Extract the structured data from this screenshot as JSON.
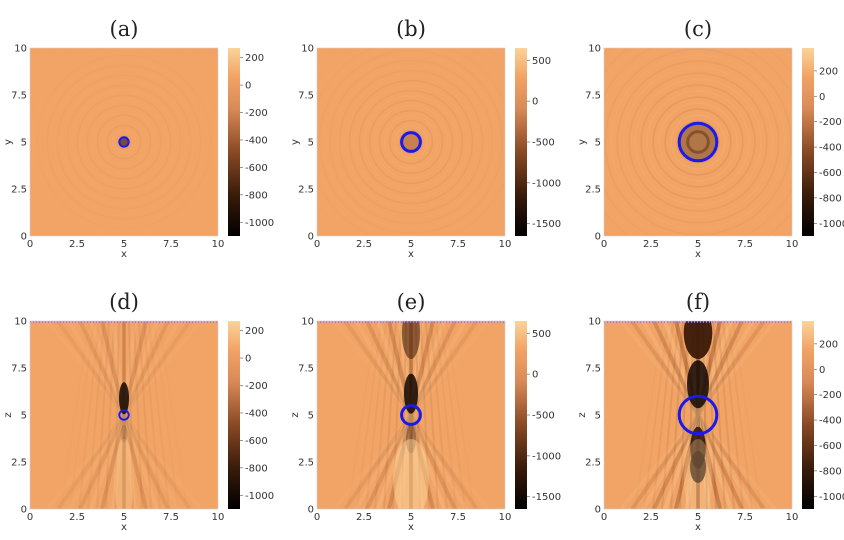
{
  "chart_data": [
    {
      "id": "a",
      "type": "heatmap",
      "title": "(a)",
      "xlabel": "x",
      "ylabel": "y",
      "xlim": [
        0,
        10
      ],
      "ylim": [
        0,
        10
      ],
      "xticks": [
        "0",
        "2.5",
        "5",
        "7.5",
        "10"
      ],
      "yticks": [
        "0",
        "2.5",
        "5",
        "7.5",
        "10"
      ],
      "colorbar": {
        "range": [
          -1100,
          270
        ],
        "ticks": [
          "200",
          "0",
          "-200",
          "-400",
          "-600",
          "-800",
          "-1000"
        ]
      },
      "field": "x-y cross-section: uniform background with faint concentric rings centered at (5,5)",
      "circle": {
        "center": [
          5,
          5
        ],
        "radius": 0.25,
        "color": "#1a1aee"
      }
    },
    {
      "id": "b",
      "type": "heatmap",
      "title": "(b)",
      "xlabel": "x",
      "ylabel": "y",
      "xlim": [
        0,
        10
      ],
      "ylim": [
        0,
        10
      ],
      "xticks": [
        "0",
        "2.5",
        "5",
        "7.5",
        "10"
      ],
      "yticks": [
        "0",
        "2.5",
        "5",
        "7.5",
        "10"
      ],
      "colorbar": {
        "range": [
          -1650,
          650
        ],
        "ticks": [
          "500",
          "0",
          "-500",
          "-1000",
          "-1500"
        ]
      },
      "field": "x-y cross-section: concentric rings centered at (5,5)",
      "circle": {
        "center": [
          5,
          5
        ],
        "radius": 0.5,
        "color": "#1a1aee"
      }
    },
    {
      "id": "c",
      "type": "heatmap",
      "title": "(c)",
      "xlabel": "x",
      "ylabel": "y",
      "xlim": [
        0,
        10
      ],
      "ylim": [
        0,
        10
      ],
      "xticks": [
        "0",
        "2.5",
        "5",
        "7.5",
        "10"
      ],
      "yticks": [
        "0",
        "2.5",
        "5",
        "7.5",
        "10"
      ],
      "colorbar": {
        "range": [
          -1100,
          380
        ],
        "ticks": [
          "200",
          "0",
          "-200",
          "-400",
          "-600",
          "-800",
          "-1000"
        ]
      },
      "field": "x-y cross-section: darker concentric rings centered at (5,5)",
      "circle": {
        "center": [
          5,
          5
        ],
        "radius": 1.0,
        "color": "#1a1aee"
      }
    },
    {
      "id": "d",
      "type": "heatmap",
      "title": "(d)",
      "xlabel": "x",
      "ylabel": "z",
      "xlim": [
        0,
        10
      ],
      "ylim": [
        0,
        10
      ],
      "xticks": [
        "0",
        "2.5",
        "5",
        "7.5",
        "10"
      ],
      "yticks": [
        "0",
        "2.5",
        "5",
        "7.5",
        "10"
      ],
      "colorbar": {
        "range": [
          -1100,
          270
        ],
        "ticks": [
          "200",
          "0",
          "-200",
          "-400",
          "-600",
          "-800",
          "-1000"
        ]
      },
      "field": "x-z cross-section: hourglass-shaped beam pattern focused at (5,5)",
      "circle": {
        "center": [
          5,
          5
        ],
        "radius": 0.25,
        "color": "#1a1aee"
      }
    },
    {
      "id": "e",
      "type": "heatmap",
      "title": "(e)",
      "xlabel": "x",
      "ylabel": "z",
      "xlim": [
        0,
        10
      ],
      "ylim": [
        0,
        10
      ],
      "xticks": [
        "0",
        "2.5",
        "5",
        "7.5",
        "10"
      ],
      "yticks": [
        "0",
        "2.5",
        "5",
        "7.5",
        "10"
      ],
      "colorbar": {
        "range": [
          -1650,
          650
        ],
        "ticks": [
          "500",
          "0",
          "-500",
          "-1000",
          "-1500"
        ]
      },
      "field": "x-z cross-section: hourglass-shaped beam pattern focused at (5,5)",
      "circle": {
        "center": [
          5,
          5
        ],
        "radius": 0.5,
        "color": "#1a1aee"
      }
    },
    {
      "id": "f",
      "type": "heatmap",
      "title": "(f)",
      "xlabel": "x",
      "ylabel": "z",
      "xlim": [
        0,
        10
      ],
      "ylim": [
        0,
        10
      ],
      "xticks": [
        "0",
        "2.5",
        "5",
        "7.5",
        "10"
      ],
      "yticks": [
        "0",
        "2.5",
        "5",
        "7.5",
        "10"
      ],
      "colorbar": {
        "range": [
          -1100,
          380
        ],
        "ticks": [
          "200",
          "0",
          "-200",
          "-400",
          "-600",
          "-800",
          "-1000"
        ]
      },
      "field": "x-z cross-section: strong hourglass-shaped beam pattern focused at (5,5)",
      "circle": {
        "center": [
          5,
          5
        ],
        "radius": 1.0,
        "color": "#1a1aee"
      }
    }
  ]
}
